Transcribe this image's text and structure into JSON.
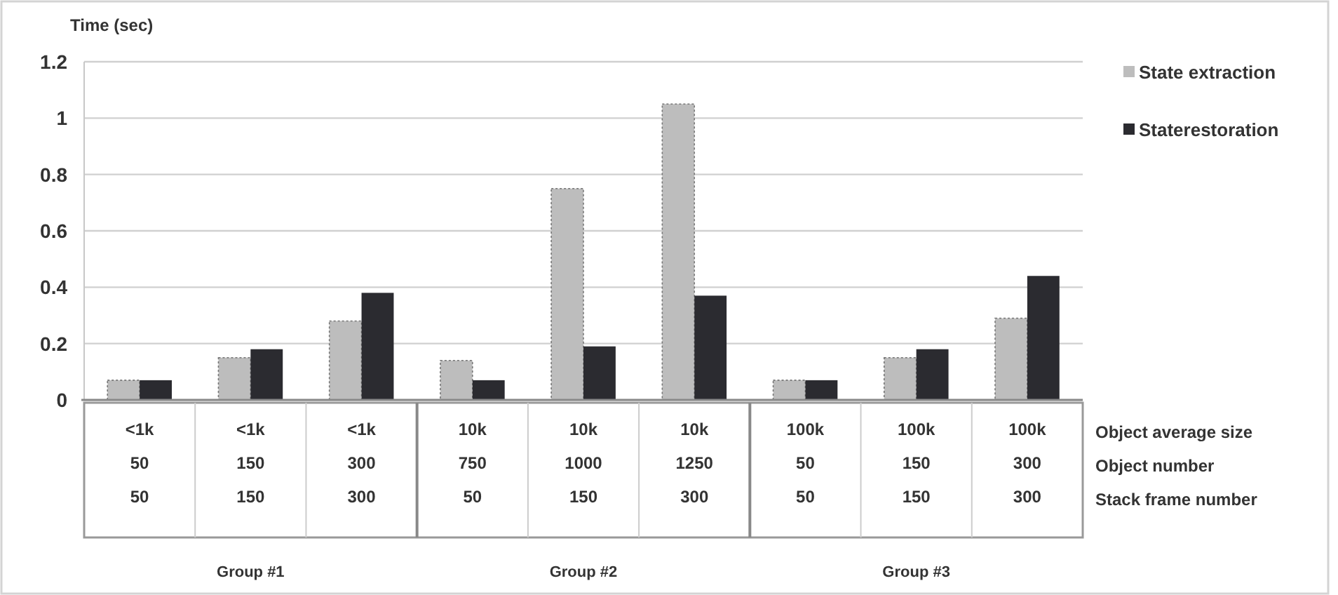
{
  "chart_data": {
    "type": "bar",
    "ylabel": "Time (sec)",
    "categories": [
      "<1k\n50\n50",
      "<1k\n150\n150",
      "<1k\n300\n300",
      "10k\n750\n50",
      "10k\n1000\n150",
      "10k\n1250\n300",
      "100k\n50\n50",
      "100k\n150\n150",
      "100k\n300\n300"
    ],
    "series": [
      {
        "name": "State extraction",
        "color": "#bdbdbd",
        "values": [
          0.07,
          0.15,
          0.28,
          0.14,
          0.75,
          1.05,
          0.07,
          0.15,
          0.29
        ]
      },
      {
        "name": "Staterestoration",
        "color": "#2b2b30",
        "values": [
          0.07,
          0.18,
          0.38,
          0.07,
          0.19,
          0.37,
          0.07,
          0.18,
          0.44
        ]
      }
    ],
    "ylim": [
      0,
      1.2
    ],
    "yticks": [
      0,
      0.2,
      0.4,
      0.6,
      0.8,
      1,
      1.2
    ],
    "grid": true,
    "legend": "right",
    "annotations": [
      "Object average size",
      "Object number",
      "Stack frame number",
      "Group #1",
      "Group #2",
      "Group #3"
    ]
  }
}
